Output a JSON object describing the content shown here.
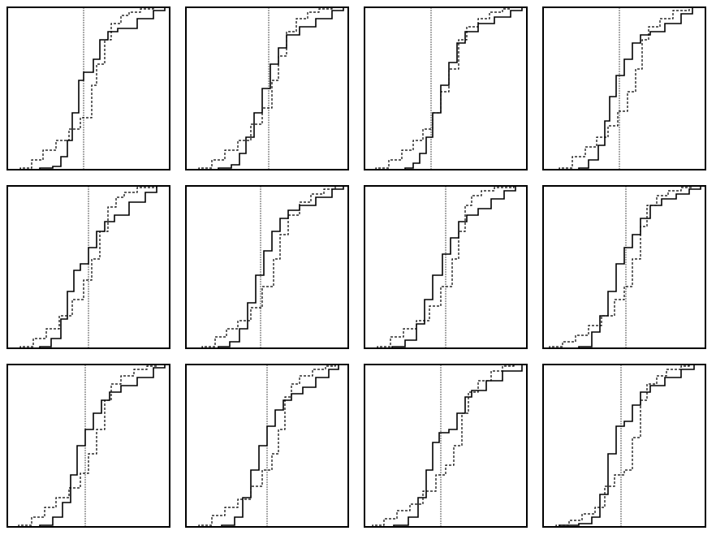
{
  "figure": {
    "rows": 3,
    "cols": 4,
    "colors": {
      "background": "#ffffff",
      "frame": "#000000",
      "series": "#000000",
      "reference_line": "#555555"
    }
  },
  "chart_data": [
    {
      "type": "line",
      "title": "",
      "xlabel": "",
      "ylabel": "",
      "xlim": [
        0,
        1
      ],
      "ylim": [
        0,
        1
      ],
      "grid": false,
      "legend": "none",
      "ref_x": 0.47,
      "series": [
        {
          "style": "solid",
          "x": [
            0.2,
            0.28,
            0.33,
            0.37,
            0.4,
            0.44,
            0.47,
            0.53,
            0.57,
            0.62,
            0.68,
            0.8,
            0.9,
            0.97
          ],
          "y": [
            0.01,
            0.02,
            0.08,
            0.18,
            0.35,
            0.55,
            0.6,
            0.68,
            0.8,
            0.85,
            0.87,
            0.93,
            0.98,
            1.0
          ]
        },
        {
          "style": "dashed",
          "x": [
            0.08,
            0.15,
            0.22,
            0.3,
            0.38,
            0.45,
            0.52,
            0.55,
            0.6,
            0.64,
            0.7,
            0.75,
            0.82,
            0.9
          ],
          "y": [
            0.01,
            0.06,
            0.12,
            0.18,
            0.25,
            0.32,
            0.52,
            0.65,
            0.8,
            0.9,
            0.95,
            0.97,
            0.99,
            1.0
          ]
        }
      ]
    },
    {
      "type": "line",
      "title": "",
      "xlabel": "",
      "ylabel": "",
      "xlim": [
        0,
        1
      ],
      "ylim": [
        0,
        1
      ],
      "grid": false,
      "legend": "none",
      "ref_x": 0.51,
      "series": [
        {
          "style": "solid",
          "x": [
            0.2,
            0.28,
            0.33,
            0.37,
            0.42,
            0.47,
            0.52,
            0.57,
            0.62,
            0.7,
            0.8,
            0.9,
            0.97
          ],
          "y": [
            0.01,
            0.03,
            0.1,
            0.2,
            0.35,
            0.5,
            0.65,
            0.75,
            0.83,
            0.88,
            0.93,
            0.98,
            1.0
          ]
        },
        {
          "style": "dashed",
          "x": [
            0.08,
            0.16,
            0.24,
            0.32,
            0.4,
            0.47,
            0.53,
            0.57,
            0.62,
            0.68,
            0.75,
            0.82,
            0.9
          ],
          "y": [
            0.01,
            0.06,
            0.12,
            0.18,
            0.28,
            0.38,
            0.55,
            0.7,
            0.85,
            0.93,
            0.97,
            0.99,
            1.0
          ]
        }
      ]
    },
    {
      "type": "line",
      "title": "",
      "xlabel": "",
      "ylabel": "",
      "xlim": [
        0,
        1
      ],
      "ylim": [
        0,
        1
      ],
      "grid": false,
      "legend": "none",
      "ref_x": 0.41,
      "series": [
        {
          "style": "solid",
          "x": [
            0.25,
            0.3,
            0.34,
            0.38,
            0.42,
            0.47,
            0.52,
            0.57,
            0.62,
            0.7,
            0.8,
            0.9,
            0.97
          ],
          "y": [
            0.01,
            0.04,
            0.1,
            0.2,
            0.35,
            0.52,
            0.66,
            0.78,
            0.85,
            0.9,
            0.94,
            0.98,
            1.0
          ]
        },
        {
          "style": "dashed",
          "x": [
            0.07,
            0.15,
            0.23,
            0.3,
            0.36,
            0.42,
            0.47,
            0.52,
            0.58,
            0.63,
            0.7,
            0.77,
            0.85,
            0.9
          ],
          "y": [
            0.01,
            0.06,
            0.12,
            0.18,
            0.25,
            0.35,
            0.48,
            0.62,
            0.8,
            0.88,
            0.93,
            0.97,
            0.99,
            1.0
          ]
        }
      ]
    },
    {
      "type": "line",
      "title": "",
      "xlabel": "",
      "ylabel": "",
      "xlim": [
        0,
        1
      ],
      "ylim": [
        0,
        1
      ],
      "grid": false,
      "legend": "none",
      "ref_x": 0.47,
      "series": [
        {
          "style": "solid",
          "x": [
            0.22,
            0.28,
            0.34,
            0.38,
            0.41,
            0.45,
            0.5,
            0.55,
            0.6,
            0.66,
            0.75,
            0.85,
            0.92
          ],
          "y": [
            0.01,
            0.06,
            0.15,
            0.3,
            0.45,
            0.58,
            0.68,
            0.78,
            0.83,
            0.85,
            0.9,
            0.96,
            1.0
          ]
        },
        {
          "style": "dashed",
          "x": [
            0.1,
            0.18,
            0.26,
            0.33,
            0.4,
            0.46,
            0.52,
            0.57,
            0.61,
            0.65,
            0.72,
            0.8,
            0.9
          ],
          "y": [
            0.01,
            0.08,
            0.14,
            0.2,
            0.27,
            0.36,
            0.48,
            0.62,
            0.8,
            0.88,
            0.93,
            0.98,
            1.0
          ]
        }
      ]
    },
    {
      "type": "line",
      "title": "",
      "xlabel": "",
      "ylabel": "",
      "xlim": [
        0,
        1
      ],
      "ylim": [
        0,
        1
      ],
      "grid": false,
      "legend": "none",
      "ref_x": 0.5,
      "series": [
        {
          "style": "solid",
          "x": [
            0.2,
            0.27,
            0.33,
            0.37,
            0.41,
            0.45,
            0.5,
            0.55,
            0.6,
            0.66,
            0.75,
            0.85,
            0.92
          ],
          "y": [
            0.01,
            0.06,
            0.18,
            0.35,
            0.48,
            0.52,
            0.62,
            0.72,
            0.78,
            0.82,
            0.9,
            0.96,
            1.0
          ]
        },
        {
          "style": "dashed",
          "x": [
            0.08,
            0.16,
            0.24,
            0.32,
            0.4,
            0.47,
            0.52,
            0.57,
            0.62,
            0.67,
            0.72,
            0.8,
            0.92
          ],
          "y": [
            0.01,
            0.06,
            0.12,
            0.2,
            0.3,
            0.42,
            0.55,
            0.72,
            0.87,
            0.93,
            0.96,
            0.99,
            1.0
          ]
        }
      ]
    },
    {
      "type": "line",
      "title": "",
      "xlabel": "",
      "ylabel": "",
      "xlim": [
        0,
        1
      ],
      "ylim": [
        0,
        1
      ],
      "grid": false,
      "legend": "none",
      "ref_x": 0.46,
      "series": [
        {
          "style": "solid",
          "x": [
            0.2,
            0.27,
            0.33,
            0.38,
            0.43,
            0.48,
            0.53,
            0.58,
            0.63,
            0.7,
            0.8,
            0.9,
            0.97
          ],
          "y": [
            0.01,
            0.04,
            0.12,
            0.28,
            0.45,
            0.6,
            0.72,
            0.8,
            0.85,
            0.88,
            0.93,
            0.98,
            1.0
          ]
        },
        {
          "style": "dashed",
          "x": [
            0.1,
            0.18,
            0.25,
            0.32,
            0.4,
            0.47,
            0.54,
            0.58,
            0.63,
            0.7,
            0.77,
            0.85,
            0.92
          ],
          "y": [
            0.01,
            0.07,
            0.12,
            0.17,
            0.25,
            0.38,
            0.55,
            0.7,
            0.82,
            0.9,
            0.95,
            0.98,
            1.0
          ]
        }
      ]
    },
    {
      "type": "line",
      "title": "",
      "xlabel": "",
      "ylabel": "",
      "xlim": [
        0,
        1
      ],
      "ylim": [
        0,
        1
      ],
      "grid": false,
      "legend": "none",
      "ref_x": 0.5,
      "series": [
        {
          "style": "solid",
          "x": [
            0.17,
            0.25,
            0.32,
            0.37,
            0.42,
            0.48,
            0.53,
            0.58,
            0.63,
            0.7,
            0.78,
            0.86,
            0.93
          ],
          "y": [
            0.01,
            0.05,
            0.15,
            0.3,
            0.45,
            0.58,
            0.68,
            0.78,
            0.82,
            0.86,
            0.92,
            0.97,
            1.0
          ]
        },
        {
          "style": "dashed",
          "x": [
            0.08,
            0.16,
            0.24,
            0.32,
            0.4,
            0.47,
            0.54,
            0.58,
            0.62,
            0.66,
            0.72,
            0.8,
            0.92
          ],
          "y": [
            0.01,
            0.07,
            0.12,
            0.17,
            0.26,
            0.38,
            0.55,
            0.72,
            0.88,
            0.94,
            0.97,
            0.99,
            1.0
          ]
        }
      ]
    },
    {
      "type": "line",
      "title": "",
      "xlabel": "",
      "ylabel": "",
      "xlim": [
        0,
        1
      ],
      "ylim": [
        0,
        1
      ],
      "grid": false,
      "legend": "none",
      "ref_x": 0.51,
      "series": [
        {
          "style": "solid",
          "x": [
            0.22,
            0.3,
            0.35,
            0.4,
            0.45,
            0.5,
            0.55,
            0.6,
            0.66,
            0.73,
            0.82,
            0.9,
            0.97
          ],
          "y": [
            0.01,
            0.1,
            0.2,
            0.35,
            0.52,
            0.62,
            0.7,
            0.8,
            0.88,
            0.92,
            0.95,
            0.98,
            1.0
          ]
        },
        {
          "style": "dashed",
          "x": [
            0.04,
            0.12,
            0.2,
            0.28,
            0.36,
            0.44,
            0.5,
            0.55,
            0.6,
            0.64,
            0.7,
            0.77,
            0.85,
            0.92
          ],
          "y": [
            0.01,
            0.04,
            0.08,
            0.14,
            0.2,
            0.3,
            0.38,
            0.55,
            0.75,
            0.88,
            0.94,
            0.97,
            0.99,
            1.0
          ]
        }
      ]
    },
    {
      "type": "line",
      "title": "",
      "xlabel": "",
      "ylabel": "",
      "xlim": [
        0,
        1
      ],
      "ylim": [
        0,
        1
      ],
      "grid": false,
      "legend": "none",
      "ref_x": 0.48,
      "series": [
        {
          "style": "solid",
          "x": [
            0.2,
            0.28,
            0.34,
            0.39,
            0.43,
            0.48,
            0.53,
            0.58,
            0.63,
            0.7,
            0.8,
            0.9,
            0.97
          ],
          "y": [
            0.01,
            0.06,
            0.15,
            0.32,
            0.5,
            0.6,
            0.7,
            0.78,
            0.83,
            0.87,
            0.92,
            0.98,
            1.0
          ]
        },
        {
          "style": "dashed",
          "x": [
            0.07,
            0.15,
            0.23,
            0.3,
            0.38,
            0.45,
            0.5,
            0.55,
            0.6,
            0.64,
            0.7,
            0.78,
            0.86,
            0.92
          ],
          "y": [
            0.01,
            0.06,
            0.12,
            0.18,
            0.24,
            0.33,
            0.45,
            0.6,
            0.78,
            0.88,
            0.93,
            0.97,
            0.99,
            1.0
          ]
        }
      ]
    },
    {
      "type": "line",
      "title": "",
      "xlabel": "",
      "ylabel": "",
      "xlim": [
        0,
        1
      ],
      "ylim": [
        0,
        1
      ],
      "grid": false,
      "legend": "none",
      "ref_x": 0.5,
      "series": [
        {
          "style": "solid",
          "x": [
            0.22,
            0.3,
            0.35,
            0.4,
            0.45,
            0.5,
            0.55,
            0.6,
            0.65,
            0.72,
            0.8,
            0.88,
            0.94
          ],
          "y": [
            0.01,
            0.06,
            0.18,
            0.35,
            0.5,
            0.62,
            0.72,
            0.78,
            0.82,
            0.86,
            0.92,
            0.97,
            1.0
          ]
        },
        {
          "style": "dashed",
          "x": [
            0.08,
            0.16,
            0.24,
            0.32,
            0.4,
            0.47,
            0.53,
            0.57,
            0.61,
            0.65,
            0.7,
            0.78,
            0.86,
            0.92
          ],
          "y": [
            0.01,
            0.07,
            0.12,
            0.17,
            0.25,
            0.35,
            0.45,
            0.6,
            0.8,
            0.88,
            0.93,
            0.97,
            0.99,
            1.0
          ]
        }
      ]
    },
    {
      "type": "line",
      "title": "",
      "xlabel": "",
      "ylabel": "",
      "xlim": [
        0,
        1
      ],
      "ylim": [
        0,
        1
      ],
      "grid": false,
      "legend": "none",
      "ref_x": 0.47,
      "series": [
        {
          "style": "solid",
          "x": [
            0.18,
            0.27,
            0.33,
            0.38,
            0.42,
            0.46,
            0.52,
            0.57,
            0.62,
            0.66,
            0.75,
            0.85,
            0.97
          ],
          "y": [
            0.01,
            0.06,
            0.18,
            0.35,
            0.52,
            0.58,
            0.6,
            0.7,
            0.8,
            0.84,
            0.9,
            0.96,
            1.0
          ]
        },
        {
          "style": "dashed",
          "x": [
            0.05,
            0.12,
            0.2,
            0.28,
            0.36,
            0.44,
            0.5,
            0.55,
            0.6,
            0.64,
            0.7,
            0.78,
            0.85,
            0.92
          ],
          "y": [
            0.01,
            0.05,
            0.1,
            0.14,
            0.22,
            0.32,
            0.38,
            0.5,
            0.7,
            0.83,
            0.9,
            0.96,
            0.99,
            1.0
          ]
        }
      ]
    },
    {
      "type": "line",
      "title": "",
      "xlabel": "",
      "ylabel": "",
      "xlim": [
        0,
        1
      ],
      "ylim": [
        0,
        1
      ],
      "grid": false,
      "legend": "none",
      "ref_x": 0.48,
      "series": [
        {
          "style": "solid",
          "x": [
            0.1,
            0.22,
            0.3,
            0.35,
            0.4,
            0.45,
            0.5,
            0.55,
            0.6,
            0.66,
            0.75,
            0.85,
            0.93
          ],
          "y": [
            0.01,
            0.02,
            0.06,
            0.2,
            0.45,
            0.62,
            0.65,
            0.75,
            0.83,
            0.87,
            0.92,
            0.97,
            1.0
          ]
        },
        {
          "style": "dashed",
          "x": [
            0.08,
            0.16,
            0.24,
            0.32,
            0.38,
            0.44,
            0.5,
            0.55,
            0.6,
            0.64,
            0.7,
            0.76,
            0.85,
            0.9
          ],
          "y": [
            0.01,
            0.04,
            0.08,
            0.12,
            0.25,
            0.32,
            0.35,
            0.55,
            0.78,
            0.88,
            0.93,
            0.97,
            0.99,
            1.0
          ]
        }
      ]
    }
  ]
}
